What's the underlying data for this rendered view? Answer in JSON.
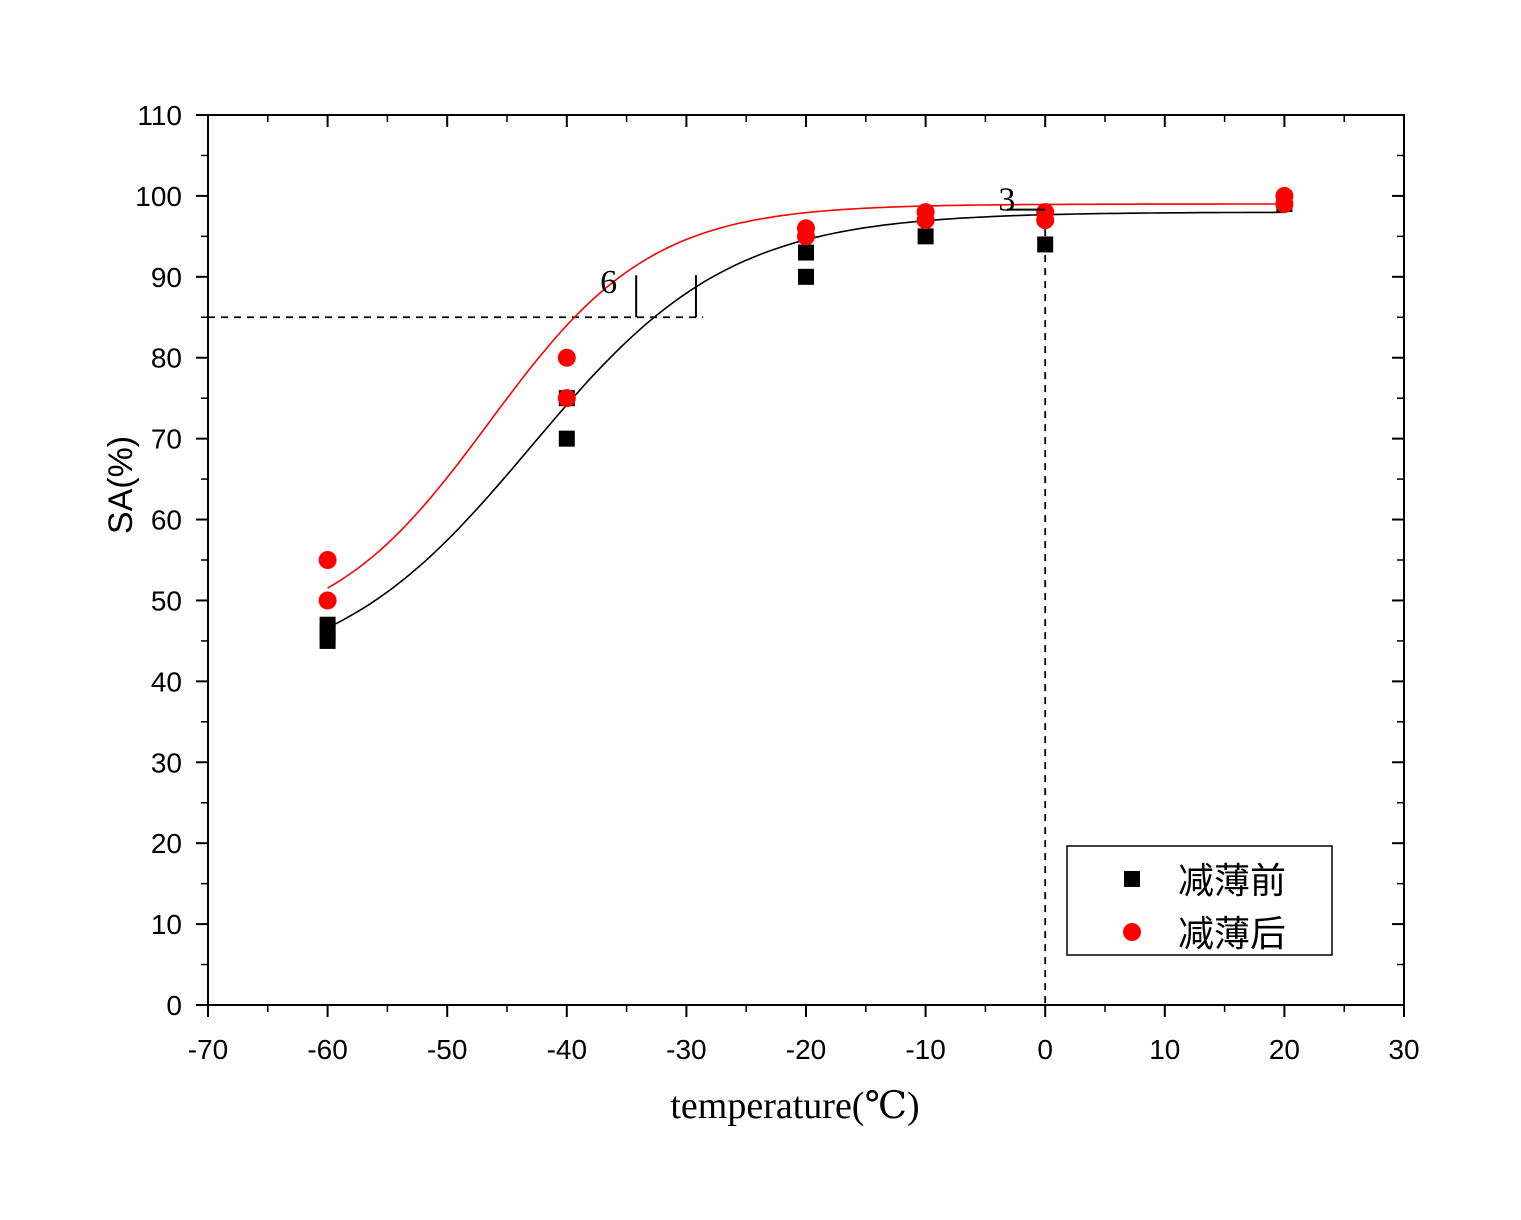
{
  "chart_data": {
    "type": "scatter",
    "xlabel": "temperature(℃)",
    "ylabel": "SA(%)",
    "xlim": [
      -70,
      30
    ],
    "ylim": [
      0,
      110
    ],
    "x_ticks": [
      -70,
      -60,
      -50,
      -40,
      -30,
      -20,
      -10,
      0,
      10,
      20,
      30
    ],
    "y_ticks": [
      0,
      10,
      20,
      30,
      40,
      50,
      60,
      70,
      80,
      90,
      100,
      110
    ],
    "legend_position": "bottom-right",
    "series": [
      {
        "name": "减薄前",
        "marker": "square",
        "color": "#000000",
        "points": [
          {
            "x": -60,
            "y": 45
          },
          {
            "x": -60,
            "y": 46
          },
          {
            "x": -60,
            "y": 47
          },
          {
            "x": -40,
            "y": 70
          },
          {
            "x": -40,
            "y": 75
          },
          {
            "x": -20,
            "y": 90
          },
          {
            "x": -20,
            "y": 93
          },
          {
            "x": -10,
            "y": 95
          },
          {
            "x": 0,
            "y": 94
          },
          {
            "x": 20,
            "y": 99
          }
        ],
        "fit": {
          "A1": 40,
          "A2": 98,
          "x0": -43,
          "dx": 8.3
        }
      },
      {
        "name": "减薄后",
        "marker": "circle",
        "color": "#ff0000",
        "points": [
          {
            "x": -60,
            "y": 50
          },
          {
            "x": -60,
            "y": 55
          },
          {
            "x": -40,
            "y": 75
          },
          {
            "x": -40,
            "y": 80
          },
          {
            "x": -20,
            "y": 95
          },
          {
            "x": -20,
            "y": 96
          },
          {
            "x": -10,
            "y": 97
          },
          {
            "x": -10,
            "y": 98
          },
          {
            "x": 0,
            "y": 97
          },
          {
            "x": 0,
            "y": 98
          },
          {
            "x": 20,
            "y": 99
          },
          {
            "x": 20,
            "y": 100
          }
        ],
        "fit": {
          "A1": 45,
          "A2": 99,
          "x0": -46.5,
          "dx": 6.8
        }
      }
    ],
    "reference_lines": {
      "horizontal_y": 85,
      "vertical_x": 0
    },
    "annotations": [
      {
        "text": "6",
        "x": -36.5,
        "y": 88
      },
      {
        "text": "3",
        "x": -3.2,
        "y": 98.2
      }
    ]
  }
}
